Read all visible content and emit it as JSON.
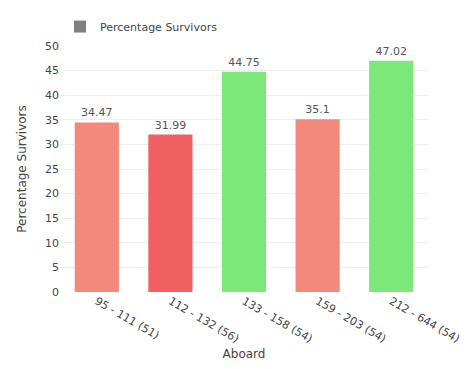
{
  "chart_data": {
    "type": "bar",
    "categories": [
      "95 - 111 (51)",
      "112 - 132 (56)",
      "133 - 158 (54)",
      "159 - 203 (54)",
      "212 - 644 (54)"
    ],
    "series": [
      {
        "name": "Percentage Survivors",
        "color": "#808080",
        "colors": [
          "#F4887A",
          "#F06060",
          "#7DE87A",
          "#F4887A",
          "#7DE87A"
        ],
        "values": [
          34.47,
          31.99,
          44.75,
          35.1,
          47.02
        ]
      }
    ],
    "xlabel": "Aboard",
    "ylabel": "Percentage Survivors",
    "ylim": [
      0,
      50
    ],
    "yticks": [
      0,
      5,
      10,
      15,
      20,
      25,
      30,
      35,
      40,
      45,
      50
    ],
    "grid": true,
    "legend": "upper left",
    "data_labels": true
  }
}
